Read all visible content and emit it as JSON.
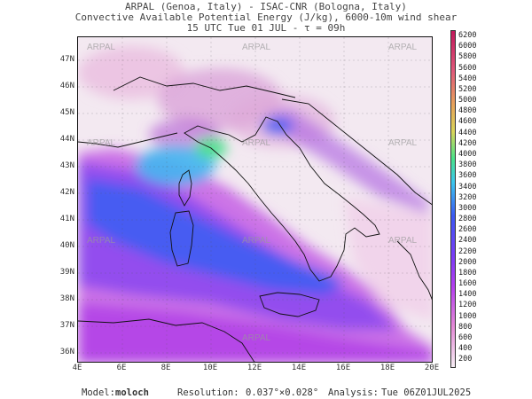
{
  "header": {
    "line1": "ARPAL (Genoa, Italy)  -  ISAC-CNR (Bologna, Italy)",
    "line2": "Convective Available Potential Energy (J/kg), 6000-10m wind shear",
    "line3": "15 UTC Tue 01 JUL  -  τ = 09h"
  },
  "map": {
    "lat_labels": [
      "47N",
      "46N",
      "45N",
      "44N",
      "43N",
      "42N",
      "41N",
      "40N",
      "39N",
      "38N",
      "37N",
      "36N"
    ],
    "lon_labels": [
      "4E",
      "6E",
      "8E",
      "10E",
      "12E",
      "14E",
      "16E",
      "18E",
      "20E"
    ],
    "watermark": "ARPAL"
  },
  "colorbar": {
    "labels": [
      "6200",
      "6000",
      "5800",
      "5600",
      "5400",
      "5200",
      "5000",
      "4800",
      "4600",
      "4400",
      "4200",
      "4000",
      "3800",
      "3600",
      "3400",
      "3200",
      "3000",
      "2800",
      "2600",
      "2400",
      "2200",
      "2000",
      "1800",
      "1600",
      "1400",
      "1200",
      "1000",
      "800",
      "600",
      "400",
      "200"
    ]
  },
  "footer": {
    "model_label": "Model:",
    "model_value": "moloch",
    "resolution_label": "Resolution:",
    "resolution_value": "0.037°×0.028°",
    "analysis_label": "Analysis:",
    "analysis_value": "Tue 06Z01JUL2025"
  },
  "colors": {
    "low": "#f6eef4",
    "mid_pink": "#e58bd6",
    "magenta": "#b43ef0",
    "purple": "#7a3cf6",
    "blue": "#3b59f3",
    "cyan": "#3cc7ee",
    "green": "#49e28a",
    "high_red": "#c2185b"
  }
}
